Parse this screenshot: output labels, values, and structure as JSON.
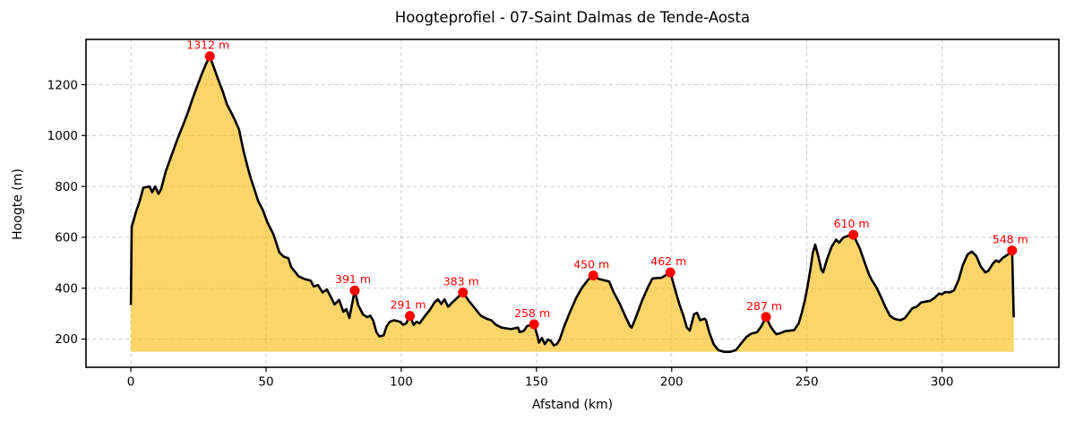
{
  "chart_data": {
    "type": "area",
    "title": "Hoogteprofiel - 07-Saint Dalmas de Tende-Aosta",
    "xlabel": "Afstand (km)",
    "ylabel": "Hoogte (m)",
    "xlim": [
      -16.6,
      343.2
    ],
    "ylim": [
      89,
      1378
    ],
    "xticks": [
      0,
      50,
      100,
      150,
      200,
      250,
      300
    ],
    "yticks": [
      200,
      400,
      600,
      800,
      1000,
      1200
    ],
    "grid": true,
    "fill_baseline_m": 150,
    "colors": {
      "fill": "#F9BE18",
      "fill_opacity": 0.65,
      "line": "#000000",
      "marker": "#FF0000",
      "peak_label": "#FF0000",
      "grid": "#CCCCCC",
      "spine": "#000000",
      "tick_label": "#000000"
    },
    "peaks": [
      {
        "km": 29.2,
        "m": 1312,
        "label": "1312 m"
      },
      {
        "km": 82.8,
        "m": 391,
        "label": "391 m"
      },
      {
        "km": 103.2,
        "m": 291,
        "label": "291 m"
      },
      {
        "km": 122.8,
        "m": 383,
        "label": "383 m"
      },
      {
        "km": 149.1,
        "m": 258,
        "label": "258 m"
      },
      {
        "km": 171.0,
        "m": 450,
        "label": "450 m"
      },
      {
        "km": 199.5,
        "m": 462,
        "label": "462 m"
      },
      {
        "km": 234.9,
        "m": 287,
        "label": "287 m"
      },
      {
        "km": 267.2,
        "m": 610,
        "label": "610 m"
      },
      {
        "km": 325.9,
        "m": 548,
        "label": "548 m"
      }
    ],
    "profile_km_m": [
      [
        0,
        334
      ],
      [
        0.3,
        640
      ],
      [
        1.9,
        700
      ],
      [
        3.2,
        741
      ],
      [
        4.6,
        795
      ],
      [
        6.9,
        800
      ],
      [
        7.9,
        777
      ],
      [
        9,
        800
      ],
      [
        10.2,
        771
      ],
      [
        11.2,
        790
      ],
      [
        12.9,
        859
      ],
      [
        15.1,
        924
      ],
      [
        17.3,
        988
      ],
      [
        19.5,
        1047
      ],
      [
        21.2,
        1094
      ],
      [
        22.9,
        1147
      ],
      [
        24.5,
        1194
      ],
      [
        26.2,
        1241
      ],
      [
        27.8,
        1282
      ],
      [
        29.2,
        1312
      ],
      [
        30.6,
        1270
      ],
      [
        32.2,
        1223
      ],
      [
        33.9,
        1176
      ],
      [
        35.5,
        1123
      ],
      [
        37.2,
        1088
      ],
      [
        38.3,
        1065
      ],
      [
        40,
        1024
      ],
      [
        41.6,
        942
      ],
      [
        43.3,
        871
      ],
      [
        44.4,
        830
      ],
      [
        45.5,
        795
      ],
      [
        47.1,
        742
      ],
      [
        48.8,
        707
      ],
      [
        50.5,
        659
      ],
      [
        52.7,
        612
      ],
      [
        54.9,
        541
      ],
      [
        56.5,
        524
      ],
      [
        58.2,
        518
      ],
      [
        59.3,
        483
      ],
      [
        62,
        447
      ],
      [
        64.2,
        436
      ],
      [
        66.5,
        430
      ],
      [
        67.6,
        407
      ],
      [
        69.2,
        412
      ],
      [
        70.9,
        383
      ],
      [
        72.5,
        395
      ],
      [
        74.2,
        360
      ],
      [
        75.3,
        336
      ],
      [
        77,
        354
      ],
      [
        78.6,
        307
      ],
      [
        79.7,
        318
      ],
      [
        80.8,
        283
      ],
      [
        82.8,
        391
      ],
      [
        84.1,
        333
      ],
      [
        85.8,
        297
      ],
      [
        87.4,
        286
      ],
      [
        88.5,
        292
      ],
      [
        89.6,
        274
      ],
      [
        90.8,
        227
      ],
      [
        91.9,
        210
      ],
      [
        93.5,
        215
      ],
      [
        94.6,
        250
      ],
      [
        95.7,
        268
      ],
      [
        97.4,
        274
      ],
      [
        99.6,
        268
      ],
      [
        100.7,
        256
      ],
      [
        101.8,
        262
      ],
      [
        103.2,
        291
      ],
      [
        104.6,
        256
      ],
      [
        105.7,
        268
      ],
      [
        106.8,
        262
      ],
      [
        108.4,
        286
      ],
      [
        110.6,
        315
      ],
      [
        112.3,
        344
      ],
      [
        113.5,
        356
      ],
      [
        114.8,
        338
      ],
      [
        116,
        356
      ],
      [
        117.3,
        327
      ],
      [
        118.9,
        344
      ],
      [
        120.5,
        360
      ],
      [
        122.8,
        383
      ],
      [
        125,
        350
      ],
      [
        127.2,
        321
      ],
      [
        129.4,
        292
      ],
      [
        131.6,
        280
      ],
      [
        133.3,
        274
      ],
      [
        135,
        256
      ],
      [
        137.1,
        245
      ],
      [
        140.5,
        239
      ],
      [
        143.2,
        245
      ],
      [
        143.8,
        227
      ],
      [
        145.4,
        233
      ],
      [
        146.5,
        251
      ],
      [
        149.1,
        258
      ],
      [
        150.4,
        210
      ],
      [
        150.9,
        186
      ],
      [
        152,
        204
      ],
      [
        153.1,
        180
      ],
      [
        154.2,
        198
      ],
      [
        155.3,
        193
      ],
      [
        156.4,
        175
      ],
      [
        157.5,
        180
      ],
      [
        158.6,
        198
      ],
      [
        160.3,
        251
      ],
      [
        162.5,
        309
      ],
      [
        164.7,
        362
      ],
      [
        166.9,
        403
      ],
      [
        169.1,
        433
      ],
      [
        171,
        450
      ],
      [
        172.9,
        437
      ],
      [
        176.9,
        426
      ],
      [
        178.5,
        385
      ],
      [
        180.8,
        339
      ],
      [
        183,
        286
      ],
      [
        184.6,
        251
      ],
      [
        185.2,
        245
      ],
      [
        186.8,
        286
      ],
      [
        189,
        350
      ],
      [
        191.2,
        403
      ],
      [
        192.9,
        438
      ],
      [
        194.5,
        440
      ],
      [
        196.2,
        441
      ],
      [
        199.5,
        462
      ],
      [
        201.2,
        397
      ],
      [
        202.8,
        339
      ],
      [
        204.5,
        286
      ],
      [
        205.6,
        245
      ],
      [
        206.7,
        233
      ],
      [
        208.3,
        298
      ],
      [
        209.4,
        303
      ],
      [
        210.5,
        274
      ],
      [
        212.2,
        280
      ],
      [
        212.7,
        274
      ],
      [
        213.9,
        227
      ],
      [
        215.5,
        180
      ],
      [
        217.2,
        157
      ],
      [
        219.4,
        150
      ],
      [
        221.6,
        150
      ],
      [
        223.8,
        157
      ],
      [
        225.5,
        180
      ],
      [
        227.7,
        209
      ],
      [
        229.4,
        221
      ],
      [
        231.6,
        227
      ],
      [
        233.2,
        251
      ],
      [
        234.9,
        287
      ],
      [
        236.5,
        251
      ],
      [
        237.6,
        233
      ],
      [
        238.7,
        219
      ],
      [
        240.4,
        224
      ],
      [
        242,
        231
      ],
      [
        243.7,
        233
      ],
      [
        245.3,
        235
      ],
      [
        247,
        262
      ],
      [
        248.1,
        303
      ],
      [
        249.2,
        350
      ],
      [
        250.3,
        409
      ],
      [
        251.4,
        480
      ],
      [
        252.2,
        538
      ],
      [
        253.1,
        571
      ],
      [
        254.2,
        526
      ],
      [
        255.3,
        474
      ],
      [
        256,
        462
      ],
      [
        257.5,
        515
      ],
      [
        259.1,
        562
      ],
      [
        260.8,
        591
      ],
      [
        261.9,
        579
      ],
      [
        263.5,
        599
      ],
      [
        265,
        605
      ],
      [
        267.2,
        610
      ],
      [
        269.6,
        556
      ],
      [
        271.3,
        503
      ],
      [
        272.9,
        456
      ],
      [
        274,
        432
      ],
      [
        275.7,
        403
      ],
      [
        277.3,
        368
      ],
      [
        279,
        327
      ],
      [
        280.7,
        292
      ],
      [
        282.3,
        280
      ],
      [
        284.5,
        274
      ],
      [
        286.2,
        282
      ],
      [
        287.3,
        297
      ],
      [
        289,
        321
      ],
      [
        290.6,
        327
      ],
      [
        292.3,
        344
      ],
      [
        293.9,
        347
      ],
      [
        295.6,
        350
      ],
      [
        297.2,
        362
      ],
      [
        298.9,
        379
      ],
      [
        300,
        376
      ],
      [
        301.1,
        385
      ],
      [
        302.8,
        383
      ],
      [
        304.4,
        391
      ],
      [
        306.1,
        432
      ],
      [
        307.7,
        491
      ],
      [
        309.4,
        532
      ],
      [
        311,
        544
      ],
      [
        312.7,
        526
      ],
      [
        314.3,
        485
      ],
      [
        316,
        462
      ],
      [
        317.1,
        468
      ],
      [
        318.8,
        497
      ],
      [
        319.9,
        509
      ],
      [
        321,
        503
      ],
      [
        322.6,
        520
      ],
      [
        324.3,
        532
      ],
      [
        325.9,
        548
      ],
      [
        326.5,
        285
      ]
    ]
  }
}
